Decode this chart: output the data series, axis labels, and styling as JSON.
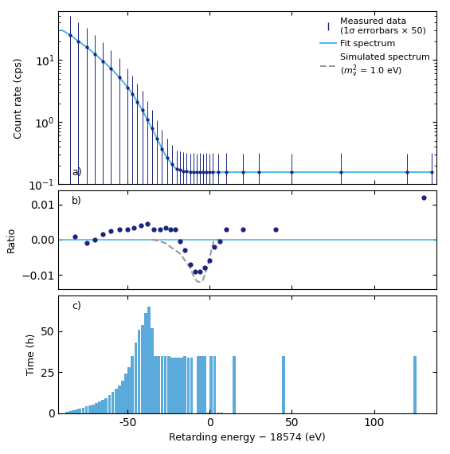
{
  "xlabel": "Retarding energy − 18574 (eV)",
  "panel_a_label": "a)",
  "panel_b_label": "b)",
  "panel_c_label": "c)",
  "ylabel_a": "Count rate (cps)",
  "ylabel_b": "Ratio",
  "ylabel_c": "Time (h)",
  "fit_color": "#4db8f0",
  "data_color": "#1a237e",
  "sim_color": "#999999",
  "bar_color": "#5aabdc",
  "xlim": [
    -92,
    138
  ],
  "ylim_a_log": [
    0.1,
    60
  ],
  "ylim_b": [
    -0.014,
    0.014
  ],
  "ylim_c": [
    0,
    72
  ],
  "spectrum_x": [
    -90,
    -85,
    -80,
    -75,
    -70,
    -65,
    -60,
    -55,
    -50,
    -47,
    -44,
    -41,
    -38,
    -35,
    -32,
    -29,
    -26,
    -23,
    -20,
    -18,
    -16,
    -14,
    -12,
    -10,
    -8,
    -6,
    -4,
    -2,
    0,
    2,
    4,
    6,
    8,
    10,
    15,
    20,
    30,
    50,
    80,
    120,
    135
  ],
  "spectrum_y": [
    30.0,
    25.0,
    20.0,
    16.0,
    12.5,
    9.5,
    7.2,
    5.2,
    3.6,
    2.8,
    2.1,
    1.55,
    1.1,
    0.78,
    0.54,
    0.37,
    0.27,
    0.21,
    0.175,
    0.168,
    0.163,
    0.16,
    0.158,
    0.157,
    0.156,
    0.156,
    0.156,
    0.156,
    0.156,
    0.156,
    0.156,
    0.156,
    0.156,
    0.156,
    0.156,
    0.156,
    0.156,
    0.156,
    0.156,
    0.156,
    0.156
  ],
  "data_pts_x": [
    -85,
    -80,
    -75,
    -70,
    -65,
    -60,
    -55,
    -50,
    -47,
    -44,
    -41,
    -38,
    -35,
    -32,
    -29,
    -26,
    -23,
    -20,
    -18,
    -16,
    -14,
    -12,
    -10,
    -8,
    -6,
    -4,
    -2,
    0,
    2,
    5,
    10,
    20,
    30,
    50,
    80,
    120,
    135
  ],
  "data_pts_noise": [
    0.02,
    -0.015,
    0.01,
    -0.02,
    0.015,
    -0.01,
    0.02,
    -0.015,
    0.01,
    -0.02,
    0.015,
    -0.01,
    0.02,
    -0.015,
    0.01,
    -0.02,
    0.015,
    -0.01,
    0.02,
    -0.015,
    0.01,
    -0.02,
    0.015,
    -0.01,
    0.02,
    -0.015,
    0.01,
    -0.02,
    0.015,
    -0.01,
    0.02,
    -0.015,
    0.01,
    -0.02,
    0.015,
    -0.01,
    0.02
  ],
  "ratio_data_x": [
    -82,
    -75,
    -70,
    -65,
    -60,
    -55,
    -50,
    -46,
    -42,
    -38,
    -34,
    -30,
    -27,
    -24,
    -21,
    -18,
    -15,
    -12,
    -9,
    -6,
    -3,
    0,
    3,
    6,
    10,
    20,
    40,
    130
  ],
  "ratio_data_y": [
    0.001,
    -0.001,
    0.0,
    0.0015,
    0.0025,
    0.003,
    0.003,
    0.0035,
    0.004,
    0.0045,
    0.003,
    0.003,
    0.0035,
    0.003,
    0.003,
    -0.0005,
    -0.003,
    -0.007,
    -0.009,
    -0.009,
    -0.008,
    -0.006,
    -0.002,
    -0.0005,
    0.003,
    0.003,
    0.003,
    0.012
  ],
  "sim_ratio_x": [
    -35,
    -30,
    -27,
    -24,
    -21,
    -18,
    -15,
    -12,
    -9,
    -7,
    -5,
    -3,
    -1,
    1,
    3,
    5,
    7
  ],
  "sim_ratio_y": [
    0.0,
    -0.0005,
    -0.001,
    -0.002,
    -0.003,
    -0.004,
    -0.006,
    -0.008,
    -0.011,
    -0.012,
    -0.012,
    -0.01,
    -0.007,
    -0.003,
    0.0,
    0.0,
    0.0
  ],
  "time_x": [
    -87,
    -85,
    -83,
    -81,
    -79,
    -77,
    -75,
    -73,
    -71,
    -69,
    -67,
    -65,
    -63,
    -61,
    -59,
    -57,
    -55,
    -53,
    -51,
    -49,
    -47,
    -45,
    -43,
    -41,
    -39,
    -37,
    -35,
    -33,
    -31,
    -29,
    -27,
    -25,
    -23,
    -21,
    -19,
    -17,
    -15,
    -13,
    -11,
    -7,
    -5,
    -3,
    -1,
    1,
    3,
    5,
    7,
    15,
    45,
    125
  ],
  "time_y": [
    1,
    1.5,
    2,
    2.5,
    3,
    3.5,
    4,
    4.5,
    5,
    6,
    7,
    8,
    9,
    11,
    13,
    15,
    17,
    20,
    24,
    28,
    35,
    43,
    51,
    54,
    61,
    65,
    52,
    35,
    35,
    35,
    35,
    35,
    34,
    34,
    34,
    34,
    35,
    34,
    34,
    35,
    35,
    35,
    0.5,
    35,
    35,
    0.5,
    0.5,
    35,
    35,
    35
  ]
}
